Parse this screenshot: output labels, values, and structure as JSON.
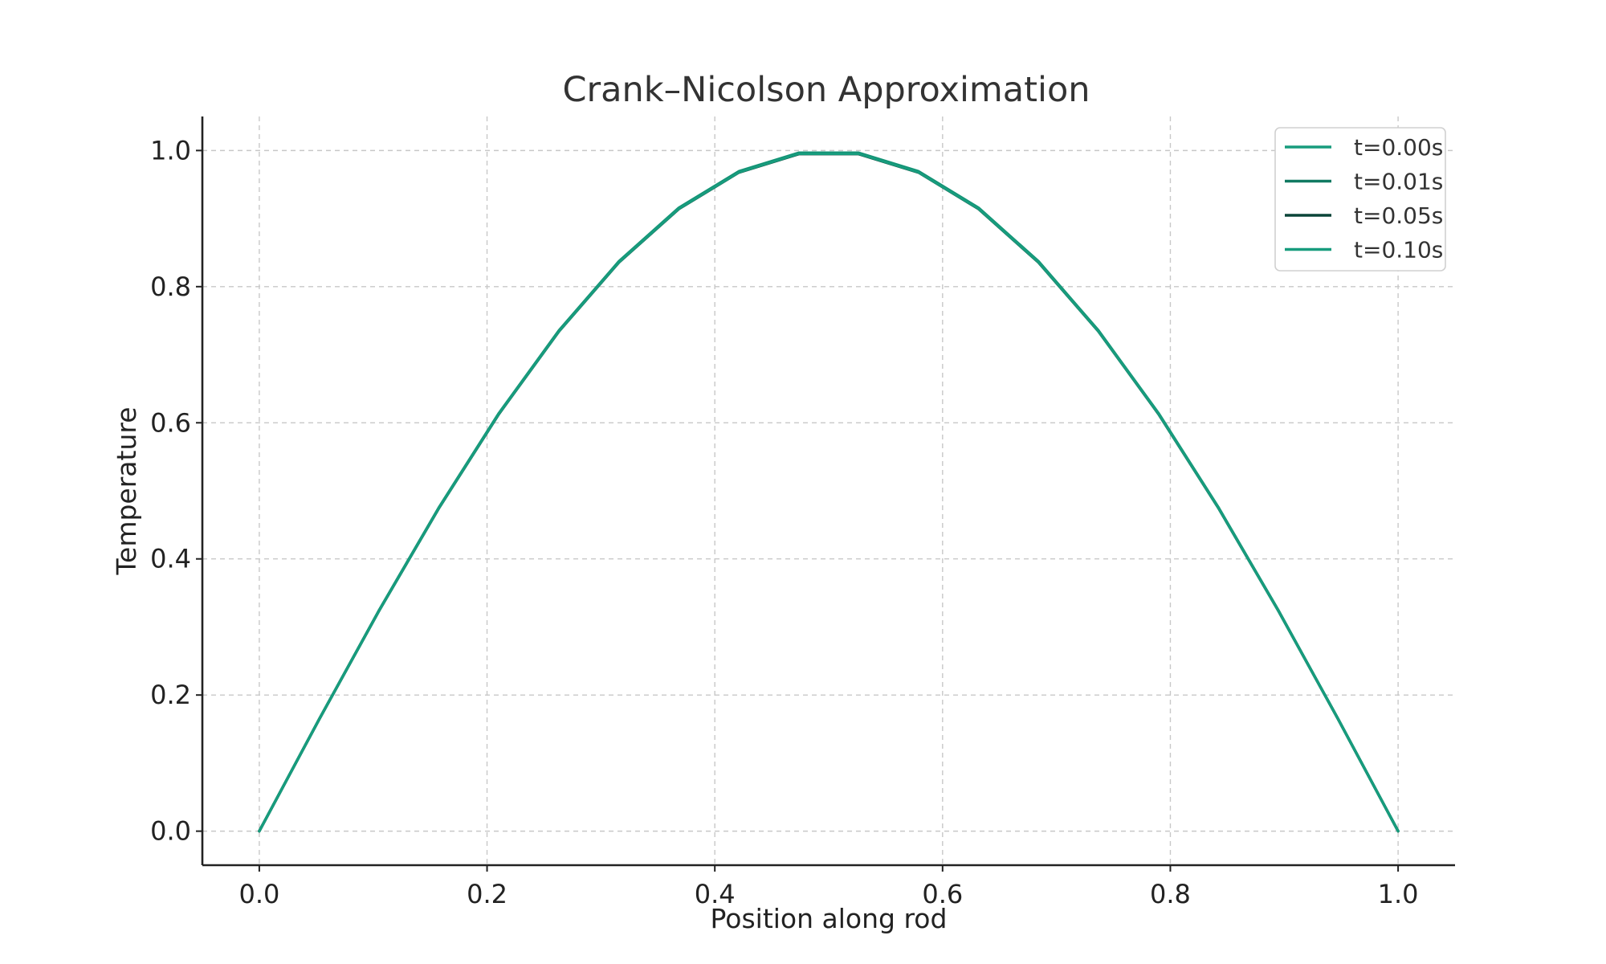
{
  "chart_data": {
    "type": "line",
    "title": "Crank–Nicolson Approximation",
    "xlabel": "Position along rod",
    "ylabel": "Temperature",
    "xlim": [
      -0.05,
      1.05
    ],
    "ylim": [
      -0.05,
      1.05
    ],
    "grid": true,
    "legend_position": "top-right",
    "xticks": [
      0.0,
      0.2,
      0.4,
      0.6,
      0.8,
      1.0
    ],
    "xtick_labels": [
      "0.0",
      "0.2",
      "0.4",
      "0.6",
      "0.8",
      "1.0"
    ],
    "yticks": [
      0.0,
      0.2,
      0.4,
      0.6,
      0.8,
      1.0
    ],
    "ytick_labels": [
      "0.0",
      "0.2",
      "0.4",
      "0.6",
      "0.8",
      "1.0"
    ],
    "x": [
      0.0,
      0.0526,
      0.1053,
      0.1579,
      0.2105,
      0.2632,
      0.3158,
      0.3684,
      0.4211,
      0.4737,
      0.5263,
      0.5789,
      0.6316,
      0.6842,
      0.7368,
      0.7895,
      0.8421,
      0.8947,
      0.9474,
      1.0
    ],
    "series": [
      {
        "name": "t=0.00s",
        "color": "#179c7d",
        "values": [
          0.0,
          0.1646,
          0.3247,
          0.4759,
          0.6142,
          0.7357,
          0.8372,
          0.9158,
          0.9694,
          0.9966,
          0.9966,
          0.9694,
          0.9158,
          0.8372,
          0.7357,
          0.6142,
          0.4759,
          0.3247,
          0.1646,
          0.0
        ]
      },
      {
        "name": "t=0.01s",
        "color": "#117a62",
        "values": [
          0.0,
          0.1645,
          0.3245,
          0.4755,
          0.6137,
          0.7351,
          0.8365,
          0.915,
          0.9686,
          0.9958,
          0.9958,
          0.9686,
          0.915,
          0.8365,
          0.7351,
          0.6137,
          0.4755,
          0.3245,
          0.1645,
          0.0
        ]
      },
      {
        "name": "t=0.05s",
        "color": "#0b4538",
        "values": [
          0.0,
          0.1643,
          0.3241,
          0.475,
          0.6131,
          0.7344,
          0.8357,
          0.9142,
          0.9677,
          0.9949,
          0.9949,
          0.9677,
          0.9142,
          0.8357,
          0.7344,
          0.6131,
          0.475,
          0.3241,
          0.1643,
          0.0
        ]
      },
      {
        "name": "t=0.10s",
        "color": "#179c7d",
        "values": [
          0.0,
          0.1644,
          0.3243,
          0.4753,
          0.6135,
          0.7348,
          0.8361,
          0.9146,
          0.9681,
          0.9953,
          0.9953,
          0.9681,
          0.9146,
          0.8361,
          0.7348,
          0.6135,
          0.4753,
          0.3243,
          0.1644,
          0.0
        ]
      }
    ]
  }
}
